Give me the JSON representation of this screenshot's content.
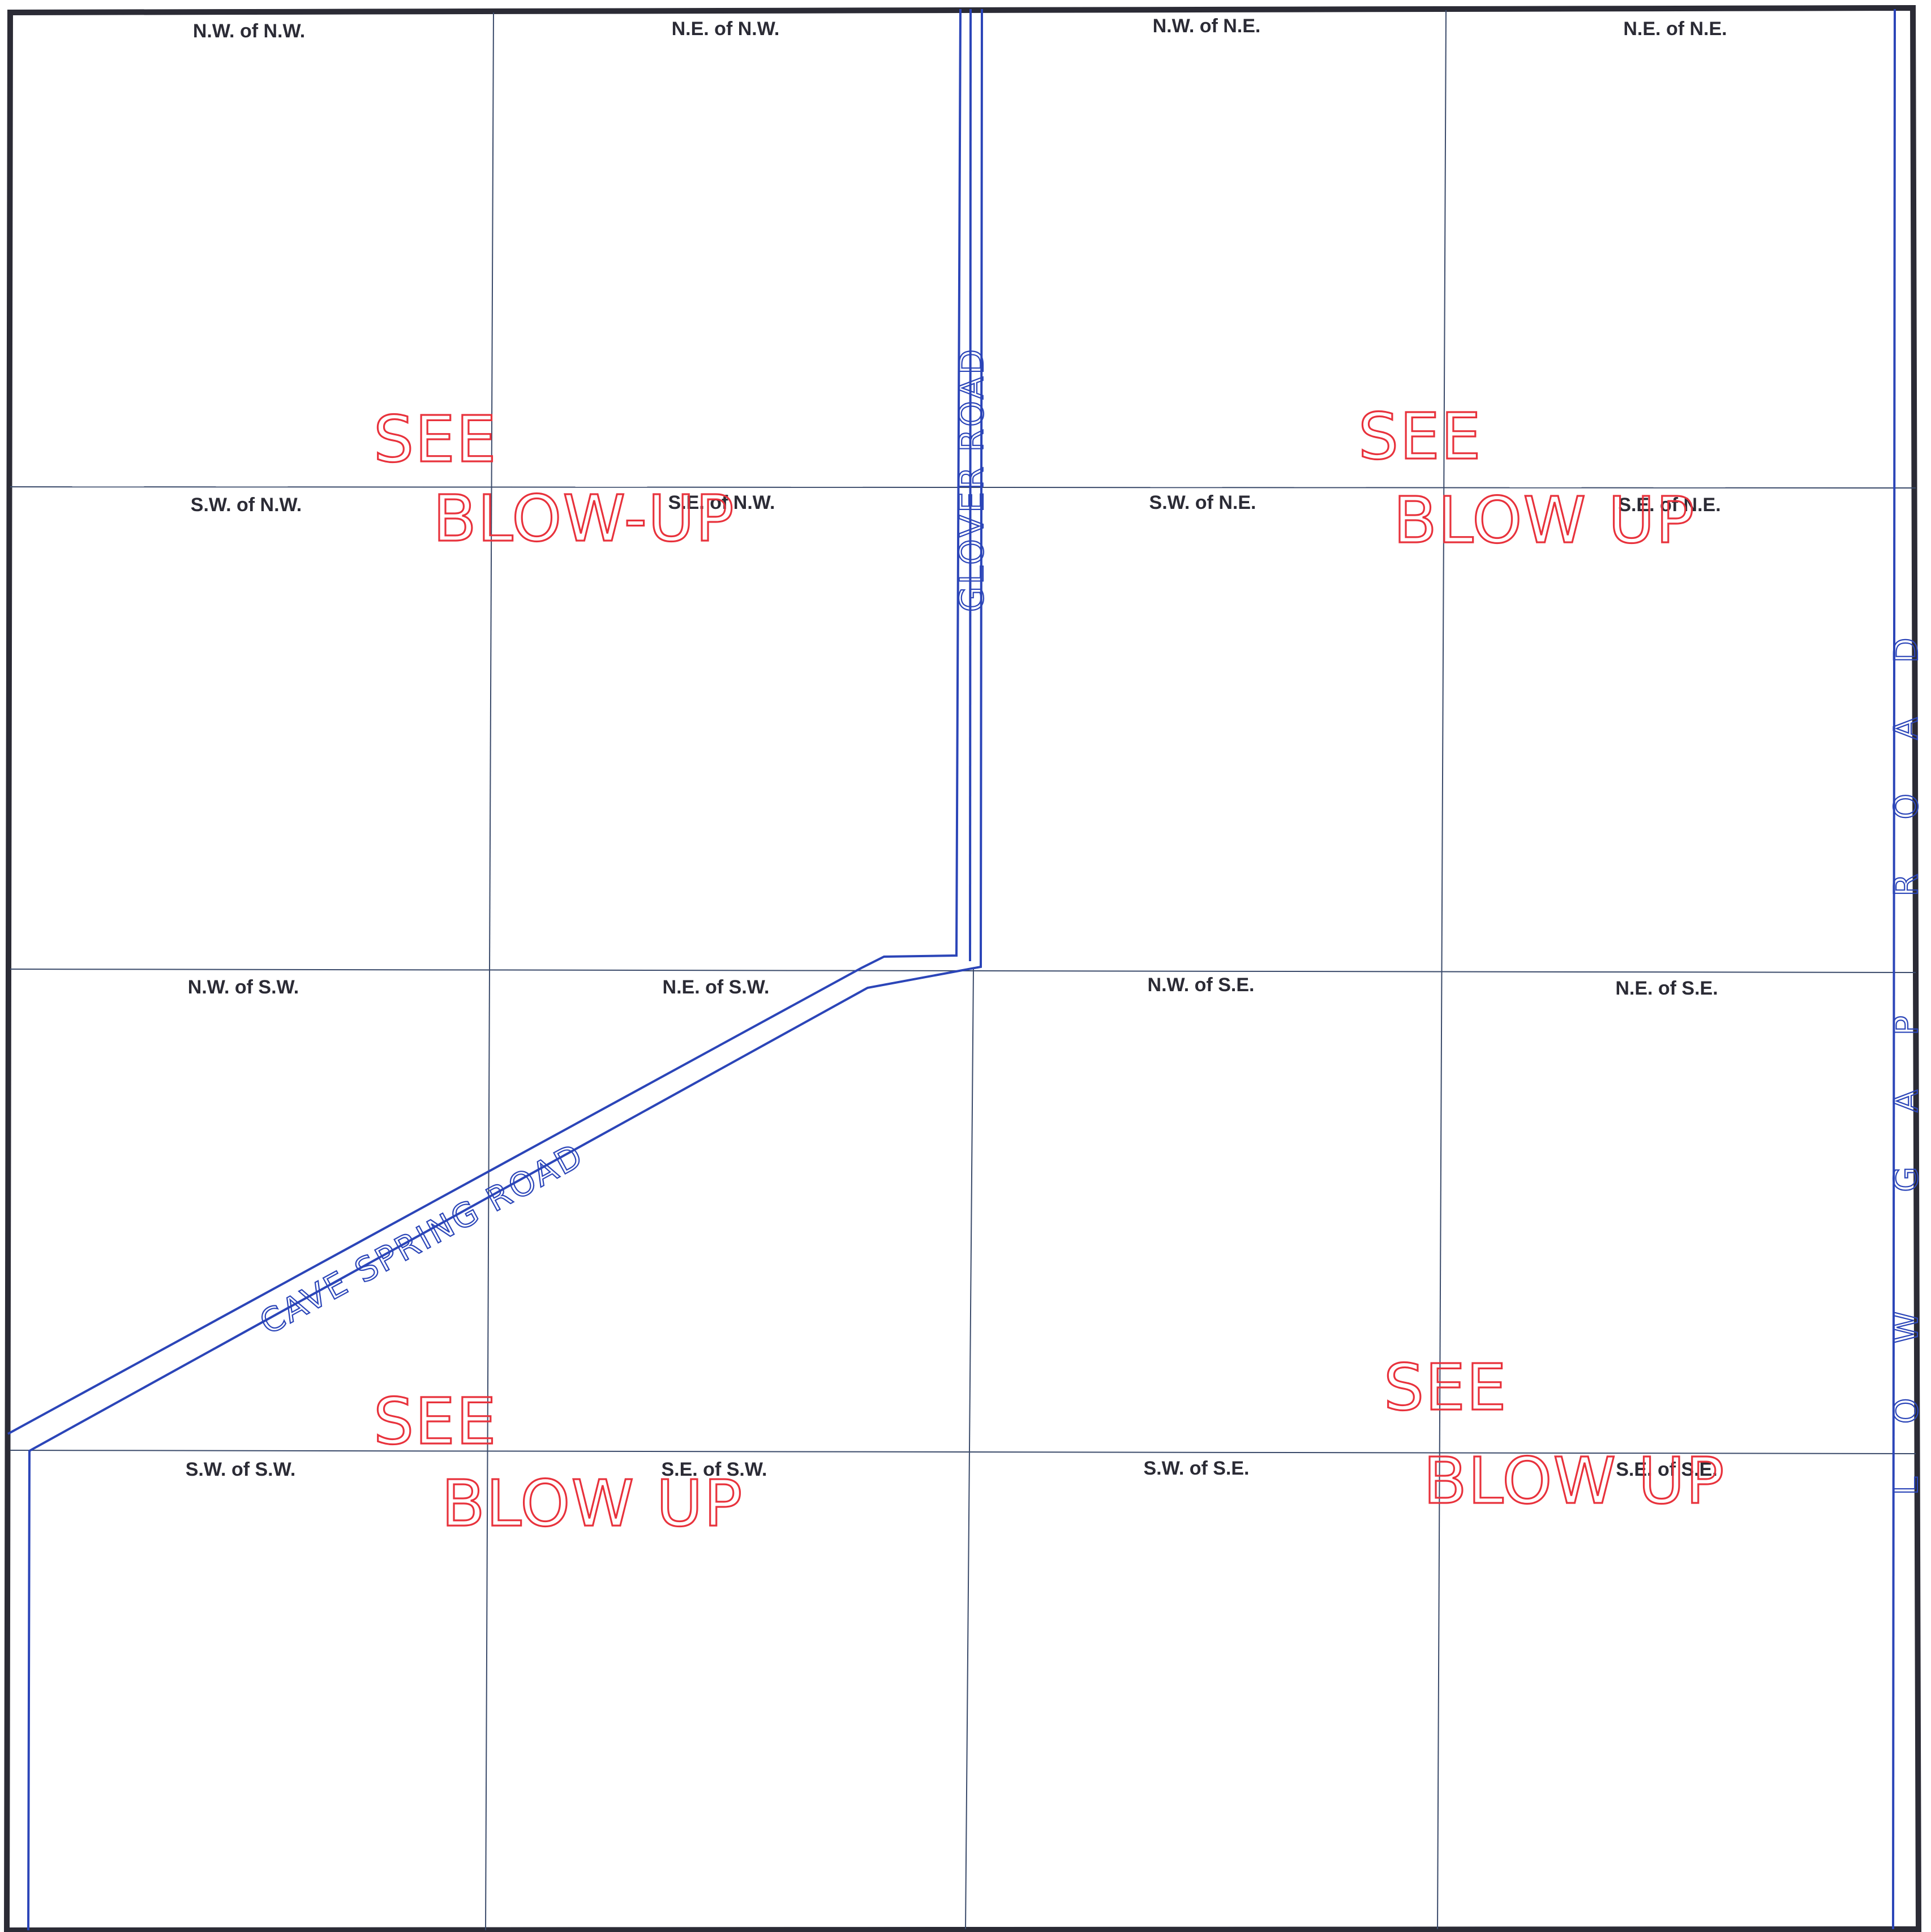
{
  "quarters": [
    {
      "id": "nw-of-nw",
      "label": "N.W. of N.W."
    },
    {
      "id": "ne-of-nw",
      "label": "N.E. of N.W."
    },
    {
      "id": "nw-of-ne",
      "label": "N.W. of N.E."
    },
    {
      "id": "ne-of-ne",
      "label": "N.E. of N.E."
    },
    {
      "id": "sw-of-nw",
      "label": "S.W. of N.W."
    },
    {
      "id": "se-of-nw",
      "label": "S.E. of N.W."
    },
    {
      "id": "sw-of-ne",
      "label": "S.W. of N.E."
    },
    {
      "id": "se-of-ne",
      "label": "S.E. of N.E."
    },
    {
      "id": "nw-of-sw",
      "label": "N.W. of S.W."
    },
    {
      "id": "ne-of-sw",
      "label": "N.E. of S.W."
    },
    {
      "id": "nw-of-se",
      "label": "N.W. of S.E."
    },
    {
      "id": "ne-of-se",
      "label": "N.E. of S.E."
    },
    {
      "id": "sw-of-sw",
      "label": "S.W. of S.W."
    },
    {
      "id": "se-of-sw",
      "label": "S.E. of S.W."
    },
    {
      "id": "sw-of-se",
      "label": "S.W. of S.E."
    },
    {
      "id": "se-of-se",
      "label": "S.E. of S.E."
    }
  ],
  "roads": {
    "glover": "GLOVER ROAD",
    "cave_spring": "CAVE SPRING ROAD",
    "low_gap": "LOW GAP ROAD"
  },
  "notes": {
    "nw": {
      "line1": "SEE",
      "line2": "BLOW-UP"
    },
    "ne": {
      "line1": "SEE",
      "line2": "BLOW UP"
    },
    "sw": {
      "line1": "SEE",
      "line2": "BLOW UP"
    },
    "se": {
      "line1": "SEE",
      "line2": "BLOW UP"
    }
  },
  "colors": {
    "border": "#2b2b35",
    "grid": "#3a4a6a",
    "road": "#2b45b8",
    "note": "#e8323c"
  }
}
